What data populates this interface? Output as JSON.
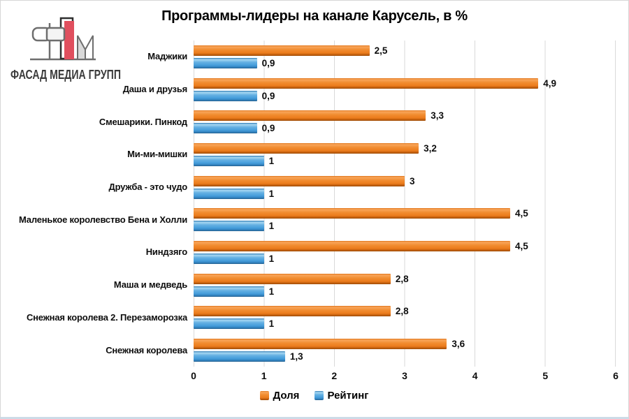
{
  "logo": {
    "text": "ФАСАД МЕДИА ГРУПП"
  },
  "chart_data": {
    "type": "bar",
    "orientation": "horizontal",
    "title": "Программы-лидеры на канале Карусель, в %",
    "categories": [
      "Маджики",
      "Даша и друзья",
      "Смешарики. Пинкод",
      "Ми-ми-мишки",
      "Дружба - это чудо",
      "Маленькое королевство Бена и Холли",
      "Ниндзяго",
      "Маша и медведь",
      "Снежная королева 2. Перезаморозка",
      "Снежная королева"
    ],
    "series": [
      {
        "name": "Доля",
        "color": "#ED7D31",
        "values": [
          2.5,
          4.9,
          3.3,
          3.2,
          3,
          4.5,
          4.5,
          2.8,
          2.8,
          3.6
        ],
        "labels": [
          "2,5",
          "4,9",
          "3,3",
          "3,2",
          "3",
          "4,5",
          "4,5",
          "2,8",
          "2,8",
          "3,6"
        ]
      },
      {
        "name": "Рейтинг",
        "color": "#4BA6DE",
        "values": [
          0.9,
          0.9,
          0.9,
          1,
          1,
          1,
          1,
          1,
          1,
          1.3
        ],
        "labels": [
          "0,9",
          "0,9",
          "0,9",
          "1",
          "1",
          "1",
          "1",
          "1",
          "1",
          "1,3"
        ]
      }
    ],
    "x_ticks": [
      "0",
      "1",
      "2",
      "3",
      "4",
      "5",
      "6"
    ],
    "xlim": [
      0,
      6
    ],
    "grid": "vertical",
    "legend_position": "bottom"
  }
}
